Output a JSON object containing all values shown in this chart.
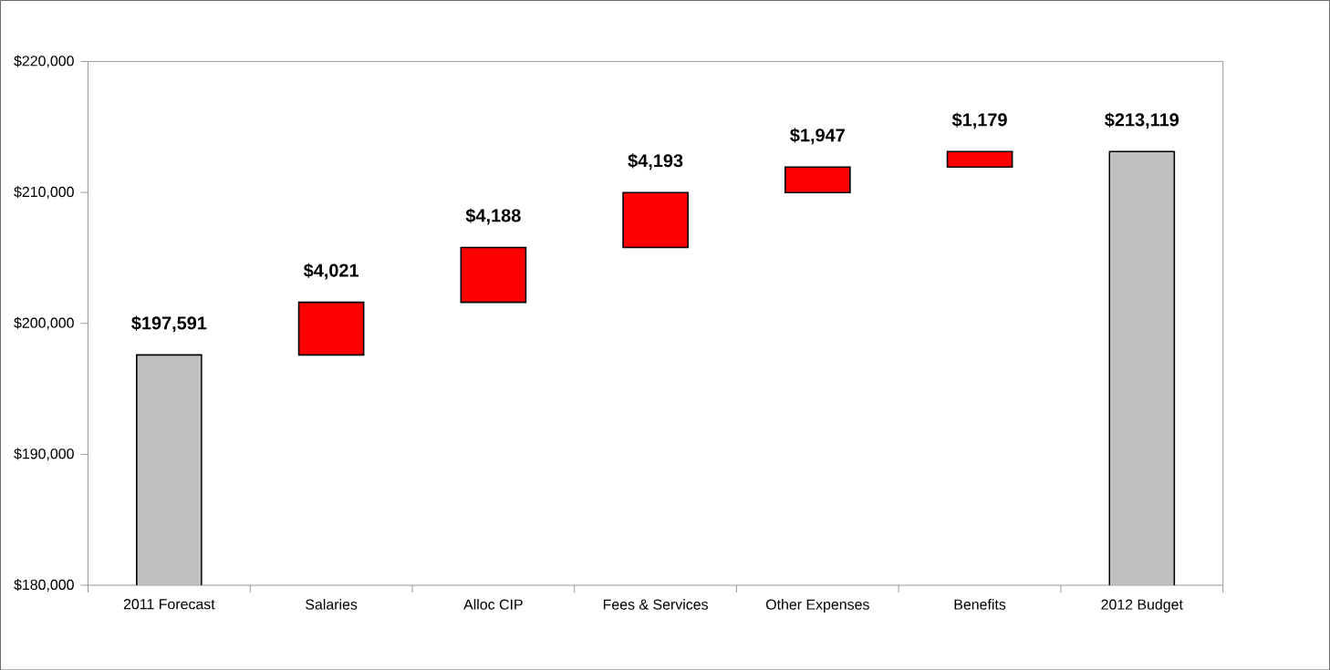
{
  "chart_data": {
    "type": "bar",
    "categories": [
      "2011 Forecast",
      "Salaries",
      "Alloc CIP",
      "Fees & Services",
      "Other Expenses",
      "Benefits",
      "2012 Budget"
    ],
    "values": [
      197591,
      4021,
      4188,
      4193,
      1947,
      1179,
      213119
    ],
    "base": [
      0,
      197591,
      201612,
      205800,
      209993,
      211940,
      0
    ],
    "colors": [
      "#c0c0c0",
      "#ff0000",
      "#ff0000",
      "#ff0000",
      "#ff0000",
      "#ff0000",
      "#c0c0c0"
    ],
    "value_labels": [
      "$197,591",
      "$4,021",
      "$4,188",
      "$4,193",
      "$1,947",
      "$1,179",
      "$213,119"
    ],
    "ylim": [
      180000,
      220000
    ],
    "yticks": [
      {
        "value": 180000,
        "label": "$180,000"
      },
      {
        "value": 190000,
        "label": "$190,000"
      },
      {
        "value": 200000,
        "label": "$200,000"
      },
      {
        "value": 210000,
        "label": "$210,000"
      },
      {
        "value": 220000,
        "label": "$220,000"
      }
    ]
  }
}
